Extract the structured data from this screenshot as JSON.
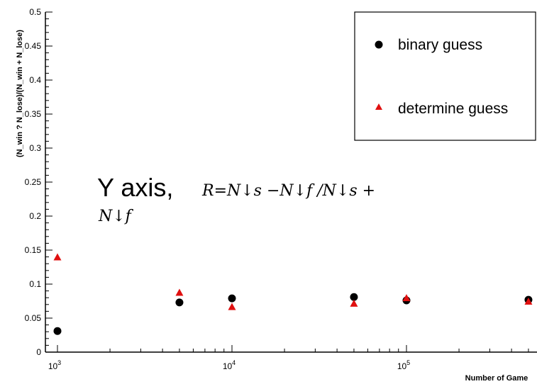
{
  "chart_data": {
    "type": "scatter",
    "title": "",
    "xlabel": "Number of Game",
    "ylabel": "(N_win ? N_lose)/(N_win + N_lose)",
    "x_scale": "log",
    "xlim": [
      900,
      550000
    ],
    "ylim": [
      0,
      0.5
    ],
    "x_ticks": [
      {
        "value": 1000,
        "base": "10",
        "exp": "3"
      },
      {
        "value": 10000,
        "base": "10",
        "exp": "4"
      },
      {
        "value": 100000,
        "base": "10",
        "exp": "5"
      }
    ],
    "y_ticks": [
      "0",
      "0.05",
      "0.1",
      "0.15",
      "0.2",
      "0.25",
      "0.3",
      "0.35",
      "0.4",
      "0.45",
      "0.5"
    ],
    "legend_position": "top-right",
    "series": [
      {
        "name": "binary guess",
        "marker": "circle",
        "color": "#000000",
        "x": [
          1000,
          5000,
          10000,
          50000,
          100000,
          500000
        ],
        "y": [
          0.031,
          0.073,
          0.079,
          0.081,
          0.076,
          0.077
        ]
      },
      {
        "name": "determine guess",
        "marker": "triangle",
        "color": "#e01010",
        "x": [
          1000,
          5000,
          10000,
          50000,
          100000,
          500000
        ],
        "y": [
          0.139,
          0.087,
          0.066,
          0.071,
          0.079,
          0.074
        ]
      }
    ],
    "annotation": {
      "prefix": "Y axis,",
      "line1": "R=N↓s −N↓f /N↓s +",
      "line2": "N↓f"
    }
  }
}
